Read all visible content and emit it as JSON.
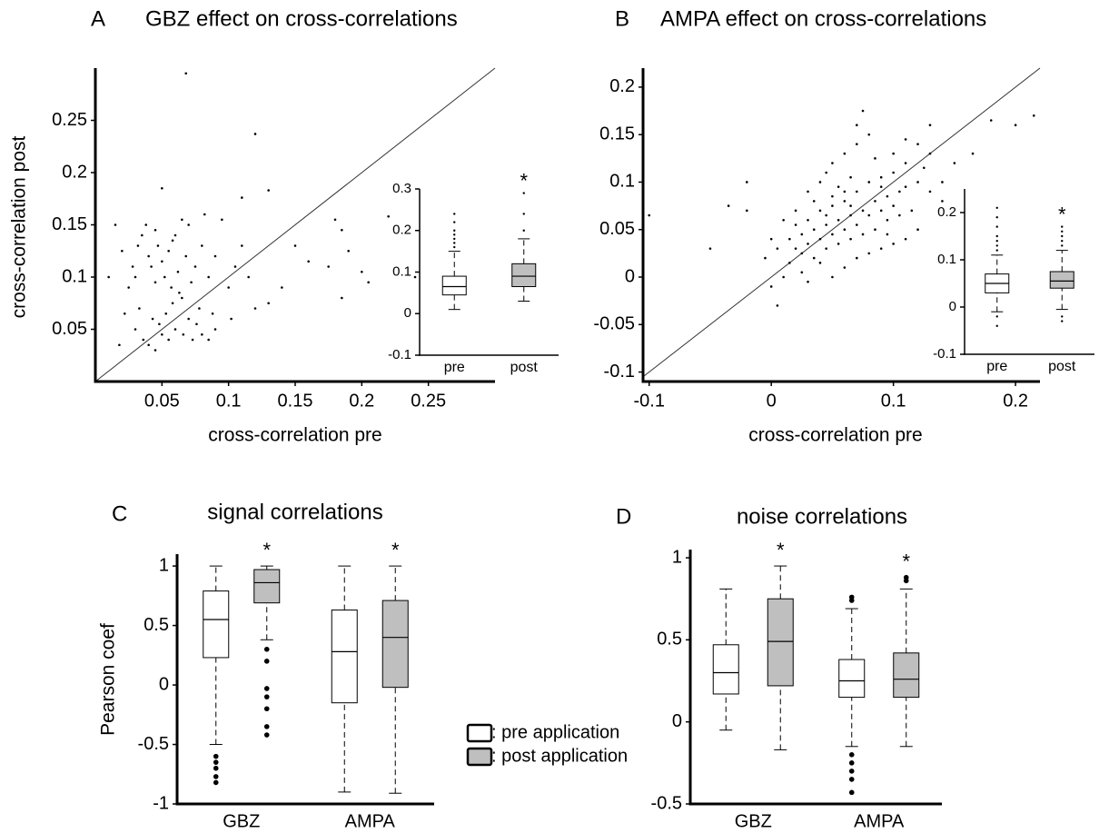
{
  "chart_data": [
    {
      "type": "scatter",
      "panel_label": "A",
      "title": "GBZ effect on cross-correlations",
      "x_label": "cross-correlation pre",
      "y_label": "cross-correlation post",
      "xlim": [
        0,
        0.3
      ],
      "ylim": [
        0,
        0.3
      ],
      "xticks": [
        0.05,
        0.1,
        0.15,
        0.2,
        0.25
      ],
      "yticks": [
        0.05,
        0.1,
        0.15,
        0.2,
        0.25
      ],
      "diagonal": true,
      "color": "#000000",
      "x": [
        0.035,
        0.038,
        0.04,
        0.042,
        0.045,
        0.047,
        0.05,
        0.052,
        0.055,
        0.057,
        0.06,
        0.062,
        0.065,
        0.068,
        0.07,
        0.072,
        0.075,
        0.078,
        0.08,
        0.082,
        0.085,
        0.088,
        0.09,
        0.095,
        0.1,
        0.102,
        0.105,
        0.03,
        0.033,
        0.036,
        0.04,
        0.043,
        0.045,
        0.048,
        0.05,
        0.053,
        0.055,
        0.058,
        0.06,
        0.063,
        0.066,
        0.07,
        0.073,
        0.076,
        0.08,
        0.085,
        0.09,
        0.025,
        0.028,
        0.02,
        0.022,
        0.018,
        0.03,
        0.032,
        0.058,
        0.065,
        0.045,
        0.11,
        0.12,
        0.115,
        0.13,
        0.068,
        0.12,
        0.13,
        0.05,
        0.11,
        0.22,
        0.18,
        0.185,
        0.19,
        0.2,
        0.185,
        0.15,
        0.24,
        0.015,
        0.01,
        0.175,
        0.205,
        0.14,
        0.16
      ],
      "values": [
        0.14,
        0.15,
        0.12,
        0.11,
        0.095,
        0.13,
        0.115,
        0.1,
        0.125,
        0.09,
        0.14,
        0.105,
        0.08,
        0.12,
        0.15,
        0.095,
        0.11,
        0.07,
        0.13,
        0.16,
        0.1,
        0.065,
        0.12,
        0.155,
        0.09,
        0.06,
        0.11,
        0.05,
        0.07,
        0.04,
        0.035,
        0.06,
        0.03,
        0.055,
        0.045,
        0.065,
        0.04,
        0.075,
        0.05,
        0.085,
        0.045,
        0.06,
        0.04,
        0.055,
        0.045,
        0.04,
        0.05,
        0.09,
        0.11,
        0.125,
        0.065,
        0.035,
        0.1,
        0.13,
        0.135,
        0.155,
        0.145,
        0.13,
        0.07,
        0.1,
        0.075,
        0.295,
        0.237,
        0.183,
        0.185,
        0.176,
        0.158,
        0.155,
        0.145,
        0.125,
        0.105,
        0.08,
        0.13,
        0.1,
        0.15,
        0.1,
        0.11,
        0.095,
        0.09,
        0.115
      ]
    },
    {
      "type": "box",
      "categories": [
        "pre",
        "post"
      ],
      "colors": [
        "#ffffff",
        "#bfbfbf"
      ],
      "ylim": [
        -0.1,
        0.3
      ],
      "yticks": [
        -0.1,
        0,
        0.1,
        0.2,
        0.3
      ],
      "annotations": [
        null,
        "*"
      ],
      "values": [
        {
          "min": 0.01,
          "q1": 0.045,
          "median": 0.065,
          "q3": 0.09,
          "max": 0.15,
          "outliers": [
            0.16,
            0.17,
            0.18,
            0.19,
            0.2,
            0.22,
            0.24
          ]
        },
        {
          "min": 0.03,
          "q1": 0.065,
          "median": 0.09,
          "q3": 0.12,
          "max": 0.18,
          "outliers": [
            0.2,
            0.24,
            0.29
          ]
        }
      ]
    },
    {
      "type": "scatter",
      "panel_label": "B",
      "title": "AMPA effect on cross-correlations",
      "x_label": "cross-correlation pre",
      "xlim": [
        -0.105,
        0.22
      ],
      "ylim": [
        -0.11,
        0.22
      ],
      "xticks": [
        -0.1,
        0,
        0.1,
        0.2
      ],
      "yticks": [
        -0.1,
        -0.05,
        0,
        0.05,
        0.1,
        0.15,
        0.2
      ],
      "diagonal": true,
      "color": "#000000",
      "x": [
        0.02,
        0.025,
        0.03,
        0.035,
        0.04,
        0.045,
        0.05,
        0.055,
        0.06,
        0.065,
        0.07,
        0.075,
        0.08,
        0.085,
        0.09,
        0.095,
        0.1,
        0.105,
        0.11,
        0.12,
        0.015,
        0.02,
        0.025,
        0.03,
        0.035,
        0.04,
        0.045,
        0.05,
        0.055,
        0.06,
        0.065,
        0.07,
        0.075,
        0.08,
        0.085,
        0.09,
        0.095,
        0.1,
        0.105,
        0.11,
        0.03,
        0.04,
        0.05,
        0.06,
        0.07,
        0.08,
        0.05,
        0.06,
        0.07,
        0.08,
        0.09,
        0.1,
        0.11,
        0.12,
        0.13,
        0.14,
        0.15,
        0.13,
        0.14,
        0.12,
        0.0,
        -0.005,
        0.01,
        0.005,
        0.015,
        0.0,
        0.01,
        -0.02,
        -0.035,
        -0.05,
        -0.1,
        -0.105,
        0.005,
        -0.02,
        0.075,
        0.07,
        0.085,
        0.045,
        0.035,
        0.02,
        0.055,
        0.065,
        0.1,
        0.11,
        0.13,
        0.2,
        0.215,
        0.18,
        0.165,
        0.125,
        0.115,
        0.095,
        0.09,
        0.025,
        0.04,
        0.03,
        0.06,
        0.05,
        0.045,
        0.065
      ],
      "values": [
        0.03,
        0.045,
        0.035,
        0.05,
        0.04,
        0.055,
        0.045,
        0.06,
        0.05,
        0.065,
        0.055,
        0.07,
        0.065,
        0.08,
        0.07,
        0.085,
        0.075,
        0.09,
        0.095,
        0.1,
        0.04,
        0.055,
        0.025,
        0.06,
        0.02,
        0.07,
        0.03,
        0.075,
        0.035,
        0.08,
        0.04,
        0.09,
        0.045,
        0.1,
        0.05,
        0.105,
        0.06,
        0.11,
        0.065,
        0.12,
        0.09,
        0.1,
        0.12,
        0.13,
        0.14,
        0.15,
        0.0,
        0.01,
        0.02,
        0.025,
        0.03,
        0.035,
        0.04,
        0.05,
        0.09,
        0.1,
        0.12,
        0.13,
        0.08,
        0.14,
        0.04,
        0.02,
        0.06,
        0.03,
        0.015,
        -0.01,
        0.0,
        0.07,
        0.075,
        0.03,
        0.065,
        0.04,
        -0.03,
        0.1,
        0.175,
        0.16,
        0.125,
        0.11,
        0.08,
        0.07,
        0.095,
        0.105,
        0.13,
        0.145,
        0.16,
        0.16,
        0.17,
        0.165,
        0.13,
        0.115,
        0.07,
        0.045,
        0.095,
        0.005,
        0.015,
        -0.005,
        0.09,
        0.085,
        0.065,
        0.075
      ]
    },
    {
      "type": "box",
      "categories": [
        "pre",
        "post"
      ],
      "colors": [
        "#ffffff",
        "#bfbfbf"
      ],
      "ylim": [
        -0.1,
        0.25
      ],
      "yticks": [
        -0.1,
        0,
        0.1,
        0.2
      ],
      "annotations": [
        null,
        "*"
      ],
      "values": [
        {
          "min": -0.01,
          "q1": 0.03,
          "median": 0.05,
          "q3": 0.07,
          "max": 0.11,
          "outliers": [
            0.12,
            0.13,
            0.14,
            0.15,
            0.17,
            0.19,
            0.21,
            -0.02,
            -0.04
          ]
        },
        {
          "min": -0.005,
          "q1": 0.04,
          "median": 0.055,
          "q3": 0.075,
          "max": 0.12,
          "outliers": [
            0.13,
            0.14,
            0.15,
            0.16,
            0.17,
            -0.02,
            -0.03
          ]
        }
      ]
    },
    {
      "type": "box",
      "panel_label": "C",
      "title": "signal correlations",
      "y_label": "Pearson coef",
      "categories": [
        "GBZ",
        "AMPA"
      ],
      "ylim": [
        -1,
        1.1
      ],
      "yticks": [
        -1,
        -0.5,
        0,
        0.5,
        1
      ],
      "series": [
        {
          "name": ": pre application",
          "color": "#ffffff",
          "values": [
            {
              "min": -0.5,
              "q1": 0.23,
              "median": 0.55,
              "q3": 0.79,
              "max": 1.0,
              "outliers": [
                -0.6,
                -0.65,
                -0.7,
                -0.77,
                -0.82
              ]
            },
            {
              "min": -0.9,
              "q1": -0.15,
              "median": 0.28,
              "q3": 0.63,
              "max": 1.0,
              "outliers": []
            }
          ]
        },
        {
          "name": ": post application",
          "color": "#bfbfbf",
          "annotations": [
            "*",
            "*"
          ],
          "values": [
            {
              "min": 0.38,
              "q1": 0.69,
              "median": 0.86,
              "q3": 0.97,
              "max": 1.0,
              "outliers": [
                0.3,
                0.2,
                -0.03,
                -0.1,
                -0.2,
                -0.35,
                -0.42
              ]
            },
            {
              "min": -0.91,
              "q1": -0.02,
              "median": 0.4,
              "q3": 0.71,
              "max": 1.0,
              "outliers": []
            }
          ]
        }
      ]
    },
    {
      "type": "box",
      "panel_label": "D",
      "title": "noise correlations",
      "categories": [
        "GBZ",
        "AMPA"
      ],
      "ylim": [
        -0.5,
        1.05
      ],
      "yticks": [
        -0.5,
        0,
        0.5,
        1
      ],
      "series": [
        {
          "color": "#ffffff",
          "values": [
            {
              "min": -0.05,
              "q1": 0.17,
              "median": 0.3,
              "q3": 0.47,
              "max": 0.81,
              "outliers": []
            },
            {
              "min": -0.15,
              "q1": 0.15,
              "median": 0.25,
              "q3": 0.38,
              "max": 0.69,
              "outliers": [
                0.74,
                0.76,
                -0.2,
                -0.25,
                -0.3,
                -0.35,
                -0.43
              ]
            }
          ]
        },
        {
          "color": "#bfbfbf",
          "annotations": [
            "*",
            "*"
          ],
          "values": [
            {
              "min": -0.17,
              "q1": 0.22,
              "median": 0.49,
              "q3": 0.75,
              "max": 0.95,
              "outliers": []
            },
            {
              "min": -0.15,
              "q1": 0.15,
              "median": 0.26,
              "q3": 0.42,
              "max": 0.81,
              "outliers": [
                0.86,
                0.88
              ]
            }
          ]
        }
      ]
    }
  ]
}
